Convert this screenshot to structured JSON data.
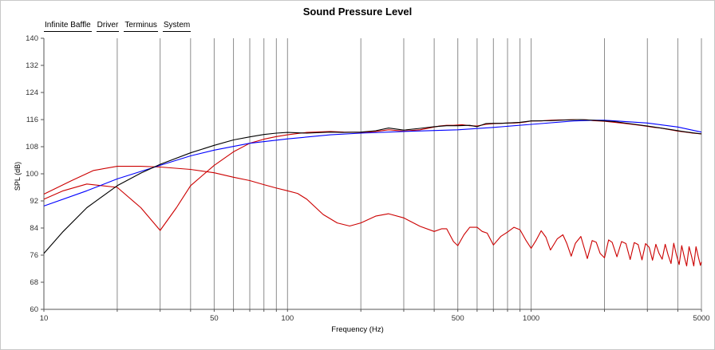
{
  "chart_data": {
    "type": "line",
    "title": "Sound Pressure Level",
    "xlabel": "Frequency (Hz)",
    "ylabel": "SPL (dB)",
    "x_scale": "log",
    "xlim": [
      10,
      5000
    ],
    "ylim": [
      60,
      140
    ],
    "x_ticks": [
      10,
      50,
      100,
      500,
      1000,
      5000
    ],
    "y_ticks": [
      60,
      68,
      76,
      84,
      92,
      100,
      108,
      116,
      124,
      132,
      140
    ],
    "grid": "vertical-log",
    "legend_placement": "top-left",
    "series": [
      {
        "name": "Infinite Baffle",
        "color": "#0000ff",
        "x": [
          10,
          15,
          20,
          30,
          40,
          50,
          70,
          100,
          150,
          200,
          300,
          500,
          700,
          1000,
          1500,
          1800,
          2000,
          3000,
          4000,
          5000
        ],
        "y": [
          90.5,
          95,
          98.5,
          102.5,
          105.3,
          107,
          109,
          110.3,
          111.5,
          112,
          112.5,
          113,
          113.7,
          114.6,
          115.6,
          115.8,
          115.8,
          115,
          113.8,
          112.3
        ]
      },
      {
        "name": "Driver",
        "color": "#cc0000",
        "x": [
          10,
          12,
          15,
          20,
          25,
          30,
          35,
          40,
          50,
          60,
          70,
          80,
          90,
          100,
          110,
          120,
          150,
          170,
          200,
          230,
          260,
          300,
          350,
          400,
          420,
          450,
          480,
          520,
          560,
          600,
          650,
          700,
          750,
          800,
          850,
          900,
          950,
          1000,
          1100,
          1200,
          1300,
          1400,
          1500,
          1600,
          1700,
          1800,
          1900,
          2000,
          2200,
          2400,
          2600,
          2800,
          3000,
          3200,
          3400,
          3600,
          3800,
          4000,
          4200,
          4400,
          4600,
          4800,
          5000
        ],
        "y": [
          92.5,
          95,
          97,
          96,
          90,
          83.3,
          90,
          96.5,
          102.5,
          106.5,
          109,
          110.2,
          111,
          111.5,
          111.9,
          112.2,
          112.5,
          112.3,
          112.2,
          112.5,
          113,
          112.6,
          113,
          113.8,
          114.1,
          114.3,
          114.3,
          114.5,
          114.2,
          114.1,
          114.6,
          114.8,
          114.9,
          115,
          115,
          115.1,
          115.3,
          115.6,
          115.6,
          115.8,
          115.9,
          115.9,
          116,
          116,
          115.9,
          115.7,
          115.6,
          115.5,
          115.2,
          114.9,
          114.6,
          114.3,
          114,
          113.7,
          113.5,
          113.2,
          112.9,
          112.6,
          112.4,
          112.2,
          112,
          111.9,
          111.8
        ]
      },
      {
        "name": "Terminus",
        "color": "#cc0000",
        "x": [
          10,
          13,
          16,
          20,
          25,
          30,
          40,
          50,
          60,
          70,
          80,
          90,
          100,
          110,
          120,
          140,
          160,
          180,
          200,
          230,
          260,
          300,
          350,
          400,
          430,
          450,
          480,
          500,
          530,
          560,
          600,
          630,
          660,
          700,
          750,
          800,
          850,
          900,
          950,
          1000,
          1050,
          1100,
          1150,
          1200,
          1280,
          1350,
          1400,
          1460,
          1520,
          1600,
          1650,
          1700,
          1780,
          1850,
          1920,
          2000,
          2080,
          2150,
          2250,
          2350,
          2450,
          2550,
          2650,
          2750,
          2850,
          2950,
          3050,
          3150,
          3250,
          3350,
          3450,
          3550,
          3650,
          3750,
          3850,
          3950,
          4050,
          4150,
          4250,
          4350,
          4450,
          4550,
          4650,
          4750,
          4850,
          4950,
          5000
        ],
        "y": [
          94,
          98,
          101,
          102.2,
          102.2,
          102,
          101.3,
          100.3,
          99,
          98,
          96.8,
          95.8,
          95,
          94.2,
          92.5,
          88,
          85.5,
          84.6,
          85.5,
          87.5,
          88.2,
          87,
          84.5,
          83,
          83.8,
          83.8,
          80,
          78.8,
          82,
          84.2,
          84.2,
          83,
          82.5,
          79,
          81.5,
          82.8,
          84.2,
          83.5,
          80.5,
          78,
          80.5,
          83.2,
          81.3,
          77.5,
          80.8,
          82,
          79.5,
          75.7,
          79.5,
          81.5,
          78.2,
          75,
          80.3,
          79.8,
          76.5,
          75.2,
          80.5,
          79.8,
          75.5,
          80,
          79.4,
          74.7,
          79.7,
          79.1,
          74.6,
          79.4,
          78.3,
          74.5,
          79.2,
          76.5,
          74.8,
          79.2,
          76,
          73.5,
          79.5,
          76,
          73.2,
          78.8,
          75.5,
          72.8,
          78.5,
          75.8,
          72.8,
          78.5,
          75.6,
          73,
          74
        ]
      },
      {
        "name": "System",
        "color": "#000000",
        "x": [
          10,
          12,
          15,
          20,
          25,
          30,
          40,
          50,
          60,
          70,
          80,
          90,
          100,
          110,
          120,
          150,
          170,
          200,
          230,
          260,
          300,
          350,
          400,
          450,
          500,
          560,
          600,
          650,
          700,
          750,
          800,
          900,
          1000,
          1200,
          1400,
          1600,
          1800,
          2000,
          2200,
          2600,
          3000,
          3400,
          3800,
          4200,
          4600,
          5000
        ],
        "y": [
          76.5,
          83,
          90,
          96.5,
          100.2,
          102.8,
          106.2,
          108.4,
          110,
          110.9,
          111.6,
          112,
          112.2,
          112.1,
          112,
          112.3,
          112.2,
          112.3,
          112.7,
          113.5,
          112.9,
          113.4,
          113.9,
          114.2,
          114.2,
          114.3,
          113.9,
          114.8,
          114.9,
          114.9,
          115,
          115.2,
          115.6,
          115.7,
          115.9,
          116,
          115.8,
          115.6,
          115.4,
          114.7,
          114.1,
          113.5,
          113,
          112.5,
          112.1,
          111.8
        ]
      }
    ]
  }
}
